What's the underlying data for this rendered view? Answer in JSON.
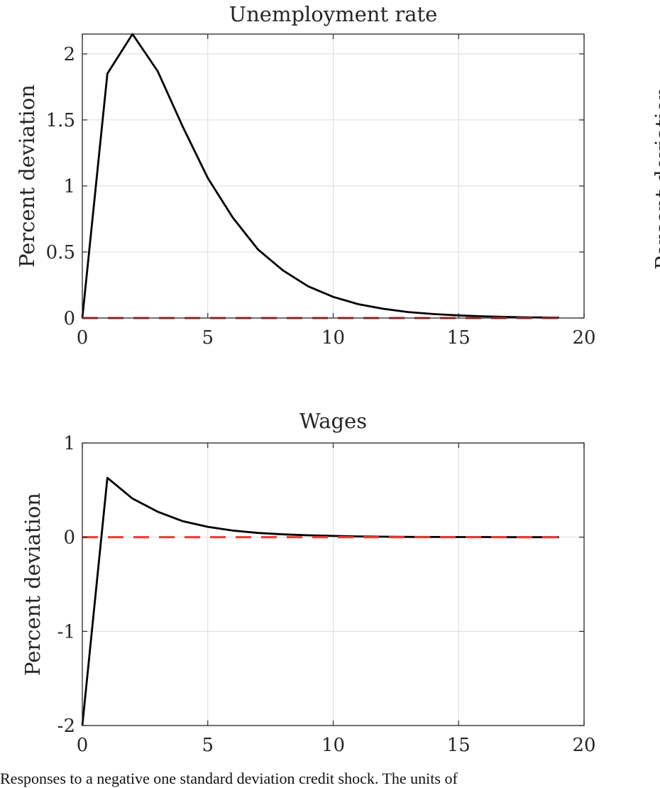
{
  "chart_data": [
    {
      "type": "line",
      "title": "Unemployment rate",
      "xlabel": "",
      "ylabel": "Percent deviation",
      "xlim": [
        0,
        20
      ],
      "ylim": [
        0,
        2.15
      ],
      "xticks": [
        "0",
        "5",
        "10",
        "15",
        "20"
      ],
      "yticks": [
        "0",
        "0.5",
        "1",
        "1.5",
        "2"
      ],
      "grid": true,
      "x": [
        0,
        1,
        2,
        3,
        4,
        5,
        6,
        7,
        8,
        9,
        10,
        11,
        12,
        13,
        14,
        15,
        16,
        17,
        18,
        19
      ],
      "series": [
        {
          "values": [
            0,
            1.85,
            2.15,
            1.87,
            1.45,
            1.06,
            0.76,
            0.52,
            0.36,
            0.24,
            0.16,
            0.105,
            0.07,
            0.045,
            0.03,
            0.02,
            0.013,
            0.008,
            0.005,
            0.003
          ],
          "color": "#000000",
          "style": "solid"
        },
        {
          "values": [
            0,
            0,
            0,
            0,
            0,
            0,
            0,
            0,
            0,
            0,
            0,
            0,
            0,
            0,
            0,
            0,
            0,
            0,
            0,
            0
          ],
          "color": "#e0413a",
          "style": "dashed"
        }
      ]
    },
    {
      "type": "line",
      "title": "Wages",
      "xlabel": "",
      "ylabel": "Percent deviation",
      "xlim": [
        0,
        20
      ],
      "ylim": [
        -2,
        1
      ],
      "xticks": [
        "0",
        "5",
        "10",
        "15",
        "20"
      ],
      "yticks": [
        "-2",
        "-1",
        "0",
        "1"
      ],
      "grid": true,
      "x": [
        0,
        1,
        2,
        3,
        4,
        5,
        6,
        7,
        8,
        9,
        10,
        11,
        12,
        13,
        14,
        15,
        16,
        17,
        18,
        19
      ],
      "series": [
        {
          "values": [
            -2,
            0.63,
            0.41,
            0.27,
            0.17,
            0.11,
            0.07,
            0.045,
            0.03,
            0.02,
            0.013,
            0.008,
            0.005,
            0.003,
            0.002,
            0.001,
            0.001,
            0,
            0,
            0
          ],
          "color": "#000000",
          "style": "solid"
        },
        {
          "values": [
            0,
            0,
            0,
            0,
            0,
            0,
            0,
            0,
            0,
            0,
            0,
            0,
            0,
            0,
            0,
            0,
            0,
            0,
            0,
            0
          ],
          "color": "#e0413a",
          "style": "dashed"
        }
      ]
    }
  ],
  "right_panel_ylabel_fragment": "Percent deviation",
  "caption": "Responses to a negative one standard deviation credit shock. The units of"
}
